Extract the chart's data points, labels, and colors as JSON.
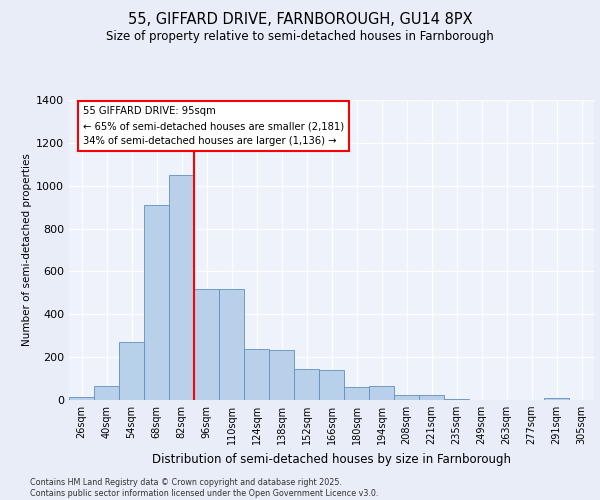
{
  "title1": "55, GIFFARD DRIVE, FARNBOROUGH, GU14 8PX",
  "title2": "Size of property relative to semi-detached houses in Farnborough",
  "xlabel": "Distribution of semi-detached houses by size in Farnborough",
  "ylabel": "Number of semi-detached properties",
  "categories": [
    "26sqm",
    "40sqm",
    "54sqm",
    "68sqm",
    "82sqm",
    "96sqm",
    "110sqm",
    "124sqm",
    "138sqm",
    "152sqm",
    "166sqm",
    "180sqm",
    "194sqm",
    "208sqm",
    "221sqm",
    "235sqm",
    "249sqm",
    "263sqm",
    "277sqm",
    "291sqm",
    "305sqm"
  ],
  "values": [
    15,
    65,
    270,
    910,
    1050,
    520,
    520,
    240,
    235,
    145,
    140,
    60,
    65,
    25,
    25,
    5,
    0,
    0,
    0,
    10,
    0
  ],
  "bar_color": "#b8d0ea",
  "bar_edge_color": "#6090c0",
  "vline_color": "red",
  "annotation_title": "55 GIFFARD DRIVE: 95sqm",
  "annotation_line1": "← 65% of semi-detached houses are smaller (2,181)",
  "annotation_line2": "34% of semi-detached houses are larger (1,136) →",
  "ylim": [
    0,
    1400
  ],
  "yticks": [
    0,
    200,
    400,
    600,
    800,
    1000,
    1200,
    1400
  ],
  "footer1": "Contains HM Land Registry data © Crown copyright and database right 2025.",
  "footer2": "Contains public sector information licensed under the Open Government Licence v3.0.",
  "bg_color": "#e8edf7",
  "plot_bg_color": "#edf2fb"
}
